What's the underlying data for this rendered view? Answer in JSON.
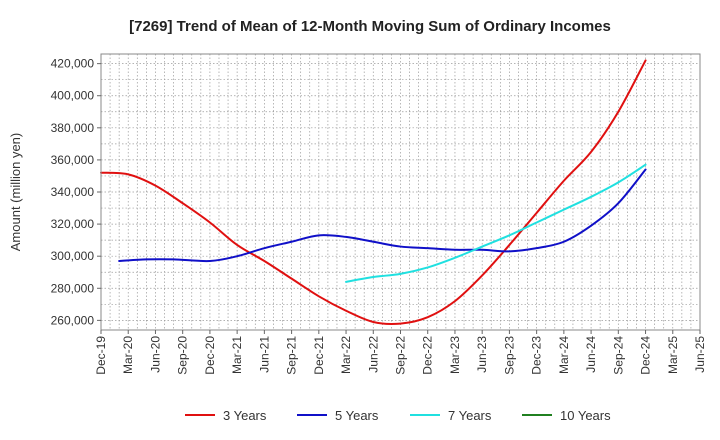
{
  "chart_data": {
    "type": "line",
    "title": "[7269]  Trend of Mean of 12-Month Moving Sum of Ordinary Incomes",
    "xlabel": "",
    "ylabel": "Amount (million yen)",
    "ylim": [
      254000,
      426000
    ],
    "yticks": [
      260000,
      280000,
      300000,
      320000,
      340000,
      360000,
      380000,
      400000,
      420000
    ],
    "ytick_labels": [
      "260,000",
      "280,000",
      "300,000",
      "320,000",
      "340,000",
      "360,000",
      "380,000",
      "400,000",
      "420,000"
    ],
    "x_range_months": [
      0,
      66
    ],
    "xticks": [
      {
        "label": "Dec-19",
        "m": 0
      },
      {
        "label": "Mar-20",
        "m": 3
      },
      {
        "label": "Jun-20",
        "m": 6
      },
      {
        "label": "Sep-20",
        "m": 9
      },
      {
        "label": "Dec-20",
        "m": 12
      },
      {
        "label": "Mar-21",
        "m": 15
      },
      {
        "label": "Jun-21",
        "m": 18
      },
      {
        "label": "Sep-21",
        "m": 21
      },
      {
        "label": "Dec-21",
        "m": 24
      },
      {
        "label": "Mar-22",
        "m": 27
      },
      {
        "label": "Jun-22",
        "m": 30
      },
      {
        "label": "Sep-22",
        "m": 33
      },
      {
        "label": "Dec-22",
        "m": 36
      },
      {
        "label": "Mar-23",
        "m": 39
      },
      {
        "label": "Jun-23",
        "m": 42
      },
      {
        "label": "Sep-23",
        "m": 45
      },
      {
        "label": "Dec-23",
        "m": 48
      },
      {
        "label": "Mar-24",
        "m": 51
      },
      {
        "label": "Jun-24",
        "m": 54
      },
      {
        "label": "Sep-24",
        "m": 57
      },
      {
        "label": "Dec-24",
        "m": 60
      },
      {
        "label": "Mar-25",
        "m": 63
      },
      {
        "label": "Jun-25",
        "m": 66
      }
    ],
    "grid": true,
    "legend_position": "bottom",
    "series": [
      {
        "name": "3 Years",
        "color": "#e01010",
        "points": [
          [
            0,
            352000
          ],
          [
            3,
            351000
          ],
          [
            6,
            344000
          ],
          [
            9,
            333000
          ],
          [
            12,
            321000
          ],
          [
            15,
            307000
          ],
          [
            18,
            297000
          ],
          [
            21,
            286000
          ],
          [
            24,
            275000
          ],
          [
            27,
            266000
          ],
          [
            30,
            259000
          ],
          [
            33,
            258000
          ],
          [
            36,
            262000
          ],
          [
            39,
            272000
          ],
          [
            42,
            288000
          ],
          [
            45,
            307000
          ],
          [
            48,
            327000
          ],
          [
            51,
            347000
          ],
          [
            54,
            365000
          ],
          [
            57,
            390000
          ],
          [
            60,
            422000
          ]
        ]
      },
      {
        "name": "5 Years",
        "color": "#1010c8",
        "points": [
          [
            2,
            297000
          ],
          [
            5,
            298000
          ],
          [
            8,
            298000
          ],
          [
            12,
            297000
          ],
          [
            15,
            300000
          ],
          [
            18,
            305000
          ],
          [
            21,
            309000
          ],
          [
            24,
            313000
          ],
          [
            27,
            312000
          ],
          [
            30,
            309000
          ],
          [
            33,
            306000
          ],
          [
            36,
            305000
          ],
          [
            39,
            304000
          ],
          [
            42,
            304000
          ],
          [
            45,
            303000
          ],
          [
            48,
            305000
          ],
          [
            51,
            309000
          ],
          [
            54,
            319000
          ],
          [
            57,
            333000
          ],
          [
            60,
            354000
          ]
        ]
      },
      {
        "name": "7 Years",
        "color": "#20e0e0",
        "points": [
          [
            27,
            284000
          ],
          [
            30,
            287000
          ],
          [
            33,
            289000
          ],
          [
            36,
            293000
          ],
          [
            39,
            299000
          ],
          [
            42,
            306000
          ],
          [
            45,
            313000
          ],
          [
            48,
            321000
          ],
          [
            51,
            329000
          ],
          [
            54,
            337000
          ],
          [
            57,
            346000
          ],
          [
            60,
            357000
          ]
        ]
      },
      {
        "name": "10 Years",
        "color": "#208020",
        "points": []
      }
    ]
  }
}
